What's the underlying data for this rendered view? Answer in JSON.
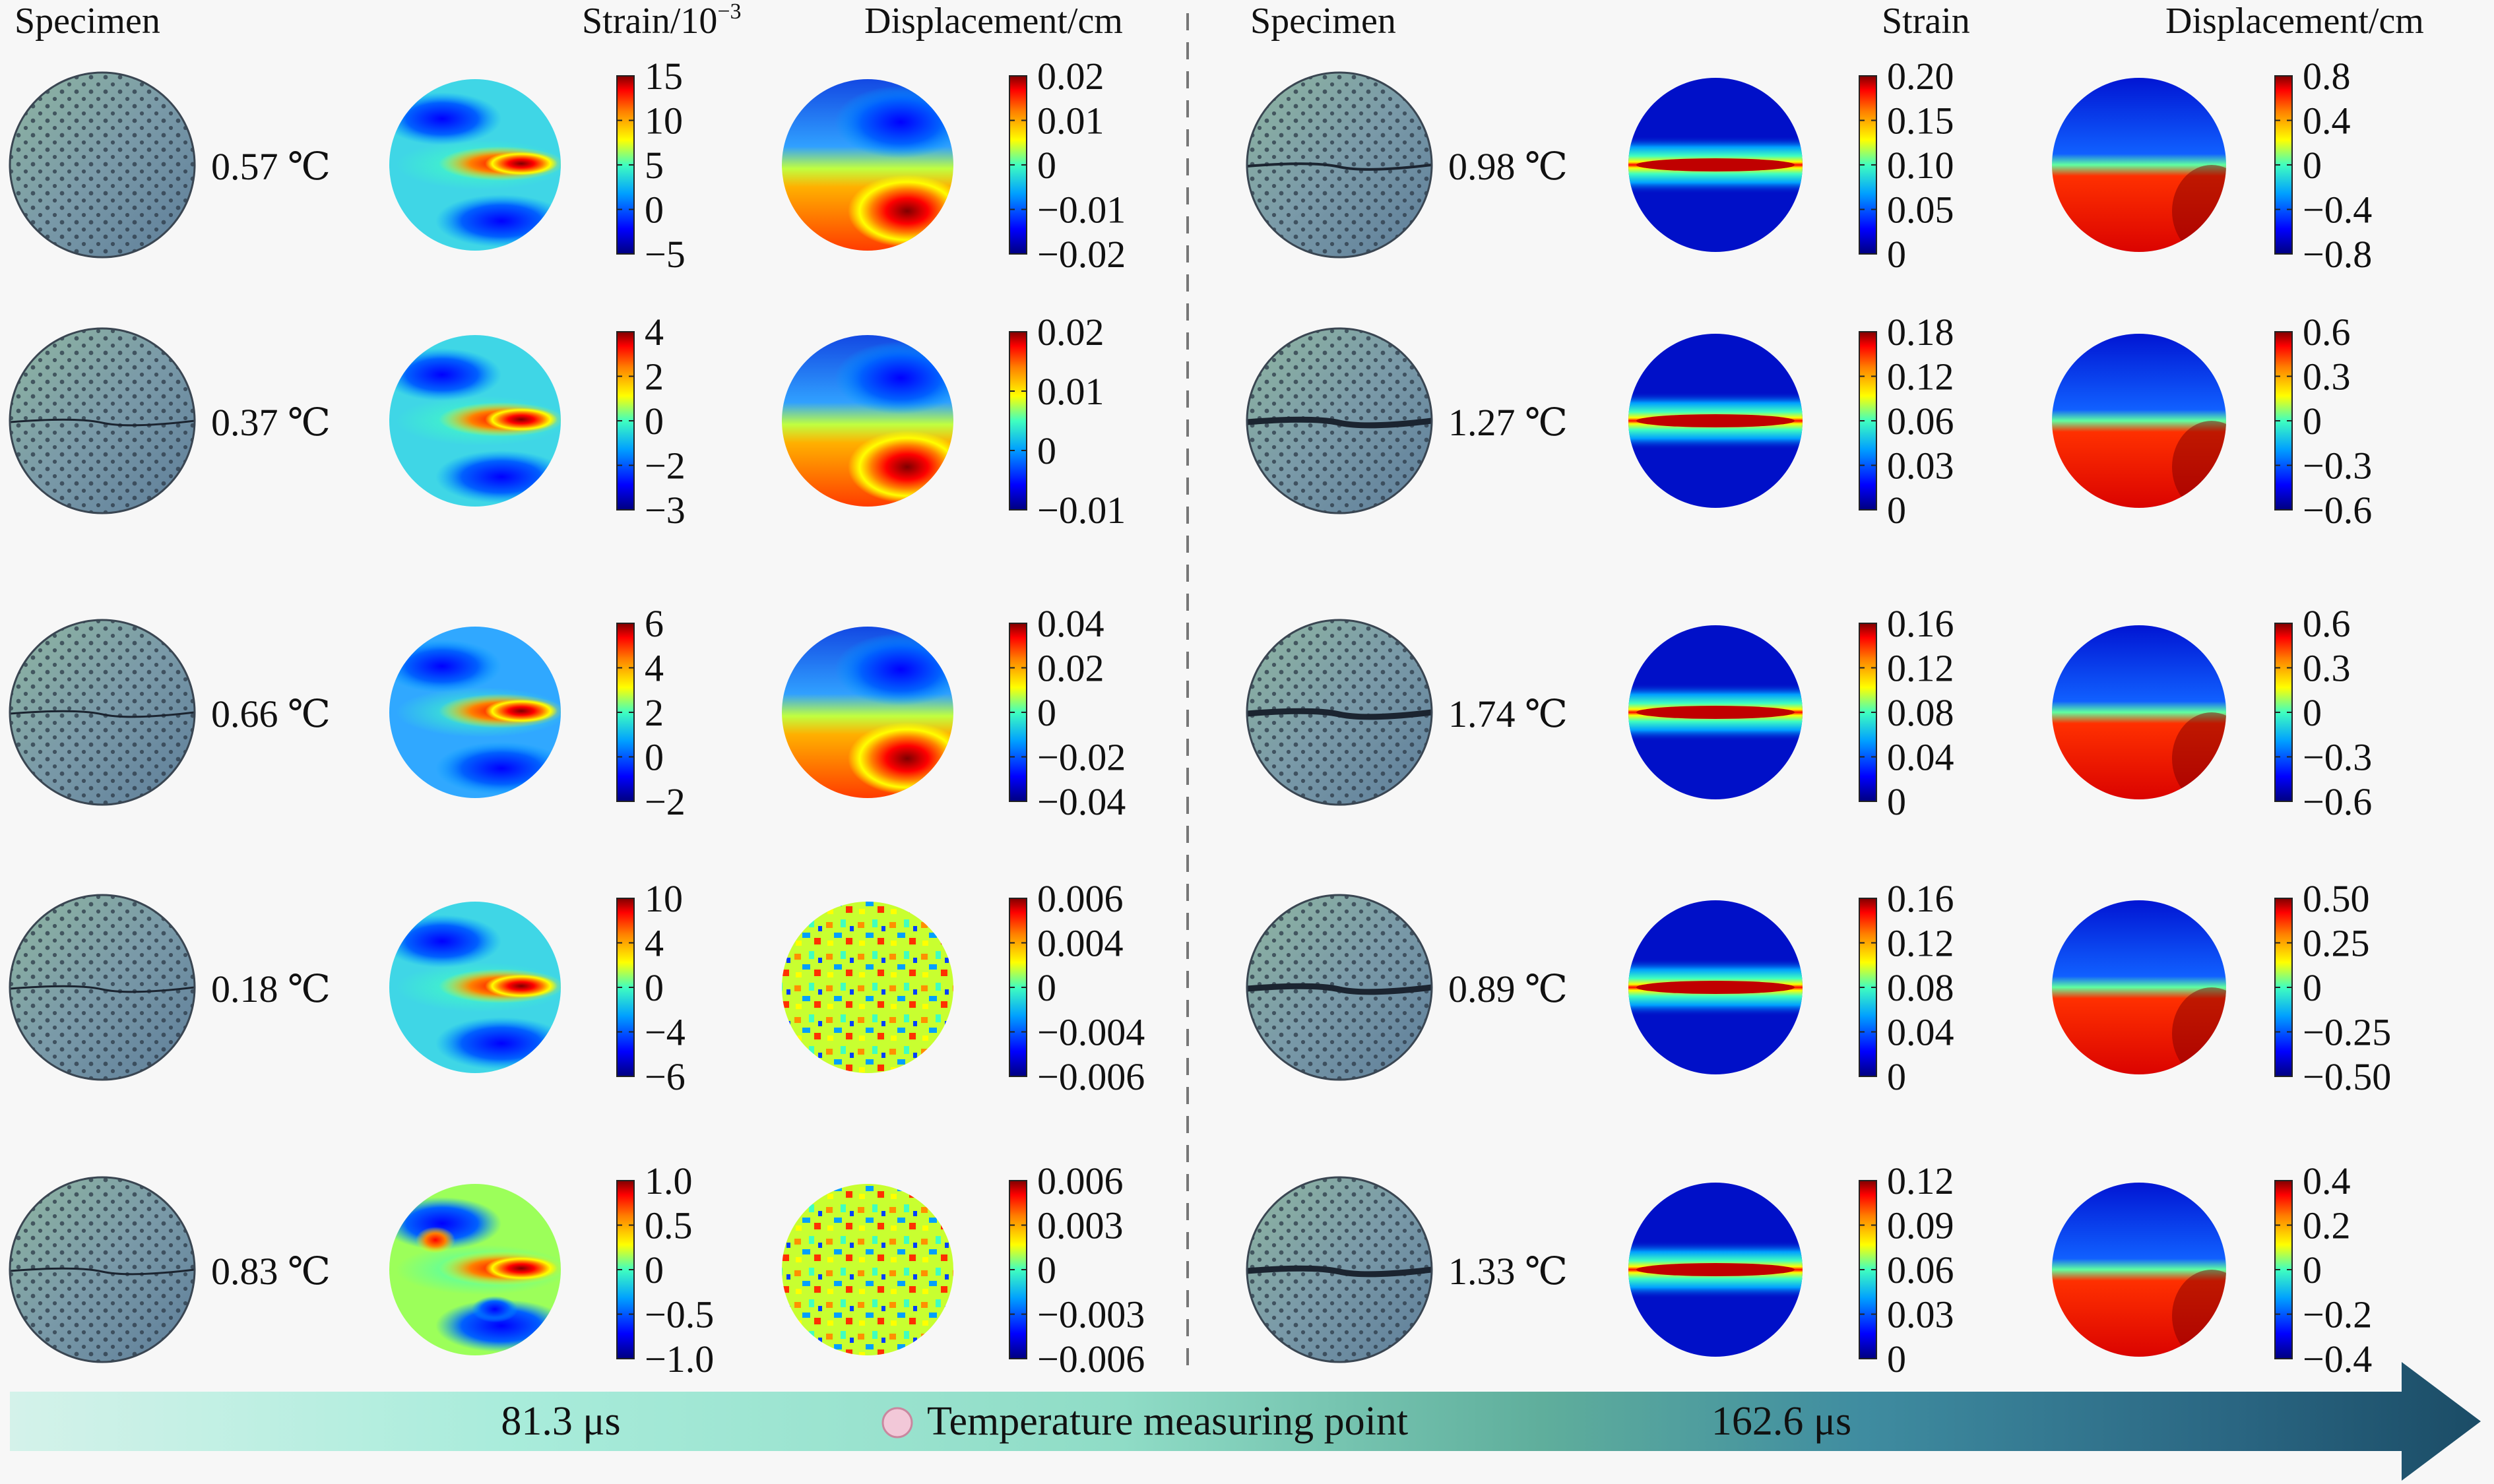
{
  "left_group": {
    "headers": {
      "specimen": "Specimen",
      "strain": "Strain/10",
      "strain_exp": "−3",
      "displacement": "Displacement/cm"
    },
    "rows": [
      {
        "temperature": "0.57 ℃",
        "strain_ticks": [
          "15",
          "10",
          "5",
          "0",
          "−5"
        ],
        "disp_ticks": [
          "0.02",
          "0.01",
          "0",
          "−0.01",
          "−0.02"
        ]
      },
      {
        "temperature": "0.37 ℃",
        "strain_ticks": [
          "4",
          "2",
          "0",
          "−2",
          "−3"
        ],
        "disp_ticks": [
          "0.02",
          "0.01",
          "0",
          "−0.01"
        ]
      },
      {
        "temperature": "0.66 ℃",
        "strain_ticks": [
          "6",
          "4",
          "2",
          "0",
          "−2"
        ],
        "disp_ticks": [
          "0.04",
          "0.02",
          "0",
          "−0.02",
          "−0.04"
        ]
      },
      {
        "temperature": "0.18 ℃",
        "strain_ticks": [
          "10",
          "4",
          "0",
          "−4",
          "−6"
        ],
        "disp_ticks": [
          "0.006",
          "0.004",
          "0",
          "−0.004",
          "−0.006"
        ]
      },
      {
        "temperature": "0.83 ℃",
        "strain_ticks": [
          "1.0",
          "0.5",
          "0",
          "−0.5",
          "−1.0"
        ],
        "disp_ticks": [
          "0.006",
          "0.003",
          "0",
          "−0.003",
          "−0.006"
        ]
      }
    ]
  },
  "right_group": {
    "headers": {
      "specimen": "Specimen",
      "strain": "Strain",
      "displacement": "Displacement/cm"
    },
    "rows": [
      {
        "temperature": "0.98 ℃",
        "strain_ticks": [
          "0.20",
          "0.15",
          "0.10",
          "0.05",
          "0"
        ],
        "disp_ticks": [
          "0.8",
          "0.4",
          "0",
          "−0.4",
          "−0.8"
        ]
      },
      {
        "temperature": "1.27 ℃",
        "strain_ticks": [
          "0.18",
          "0.12",
          "0.06",
          "0.03",
          "0"
        ],
        "disp_ticks": [
          "0.6",
          "0.3",
          "0",
          "−0.3",
          "−0.6"
        ]
      },
      {
        "temperature": "1.74 ℃",
        "strain_ticks": [
          "0.16",
          "0.12",
          "0.08",
          "0.04",
          "0"
        ],
        "disp_ticks": [
          "0.6",
          "0.3",
          "0",
          "−0.3",
          "−0.6"
        ]
      },
      {
        "temperature": "0.89 ℃",
        "strain_ticks": [
          "0.16",
          "0.12",
          "0.08",
          "0.04",
          "0"
        ],
        "disp_ticks": [
          "0.50",
          "0.25",
          "0",
          "−0.25",
          "−0.50"
        ]
      },
      {
        "temperature": "1.33 ℃",
        "strain_ticks": [
          "0.12",
          "0.09",
          "0.06",
          "0.03",
          "0"
        ],
        "disp_ticks": [
          "0.4",
          "0.2",
          "0",
          "−0.2",
          "−0.4"
        ]
      }
    ]
  },
  "timeline": {
    "left_time": "81.3 μs",
    "right_time": "162.6 μs",
    "legend_label": "Temperature measuring point"
  },
  "colors": {
    "jet": [
      "#00007f",
      "#0000ff",
      "#00a0ff",
      "#40ffbf",
      "#ffff00",
      "#ff8000",
      "#ff0000",
      "#7f0000"
    ],
    "specimen_blue": "#61809a",
    "specimen_green": "#8fb49d",
    "arrow_dark": "#1e5068",
    "arrow_light": "#cdeee6"
  }
}
